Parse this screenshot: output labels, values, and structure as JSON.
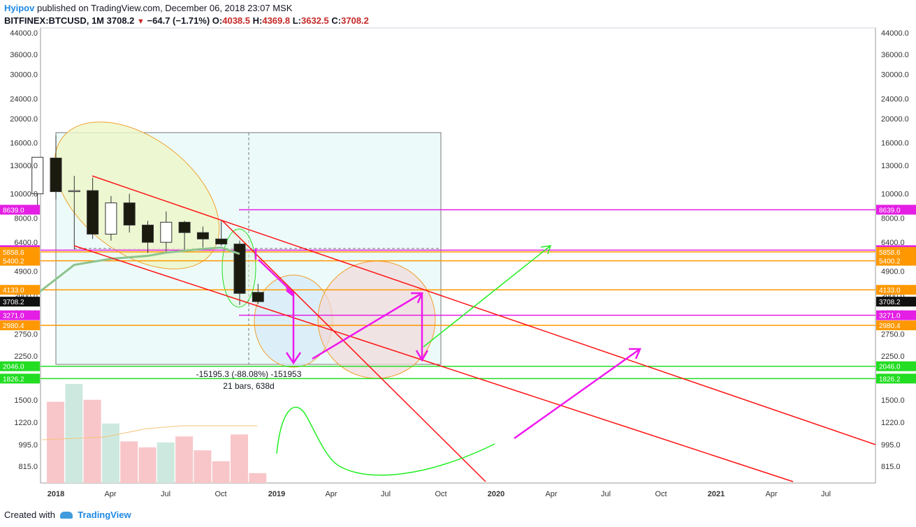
{
  "header": {
    "author": "Hyipov",
    "published_text": "published on TradingView.com, December 06, 2018 23:07 MSK",
    "symbol_line": "BITFINEX:BTCUSD, 1M",
    "last_price": "3708.2",
    "change": "−64.7 (−1.71%)",
    "o_label": "O:",
    "o_value": "4038.5",
    "h_label": "H:",
    "h_value": "4369.8",
    "l_label": "L:",
    "l_value": "3632.5",
    "c_label": "C:",
    "c_value": "3708.2"
  },
  "footer": {
    "created_with": "Created with",
    "brand": "TradingView"
  },
  "chart_data": {
    "type": "candlestick",
    "price_scale": "log",
    "price_ticks": [
      "44000.0",
      "36000.0",
      "30000.0",
      "24000.0",
      "20000.0",
      "16000.0",
      "13000.0",
      "10000.0",
      "8000.0",
      "6400.0",
      "4900.0",
      "3900.0",
      "3350.0",
      "2750.0",
      "2250.0",
      "1826.2",
      "1500.0",
      "1220.0",
      "995.0",
      "815.0"
    ],
    "time_ticks": [
      "2018",
      "Apr",
      "Jul",
      "Oct",
      "2019",
      "Apr",
      "Jul",
      "Oct",
      "2020",
      "Apr",
      "Jul",
      "Oct",
      "2021",
      "Apr",
      "Jul"
    ],
    "candles": [
      {
        "t": "2017-12",
        "o": 10000,
        "h": 14000,
        "l": 9000,
        "c": 14000
      },
      {
        "t": "2018-01",
        "o": 13900,
        "h": 17100,
        "l": 9500,
        "c": 10200
      },
      {
        "t": "2018-02",
        "o": 10200,
        "h": 11800,
        "l": 6000,
        "c": 10300
      },
      {
        "t": "2018-03",
        "o": 10300,
        "h": 11600,
        "l": 6600,
        "c": 6900
      },
      {
        "t": "2018-04",
        "o": 6900,
        "h": 9800,
        "l": 6500,
        "c": 9200
      },
      {
        "t": "2018-05",
        "o": 9200,
        "h": 10000,
        "l": 7000,
        "c": 7500
      },
      {
        "t": "2018-06",
        "o": 7500,
        "h": 7800,
        "l": 5800,
        "c": 6400
      },
      {
        "t": "2018-07",
        "o": 6400,
        "h": 8500,
        "l": 5850,
        "c": 7700
      },
      {
        "t": "2018-08",
        "o": 7700,
        "h": 7800,
        "l": 5900,
        "c": 7000
      },
      {
        "t": "2018-09",
        "o": 7000,
        "h": 7400,
        "l": 6100,
        "c": 6600
      },
      {
        "t": "2018-10",
        "o": 6600,
        "h": 7800,
        "l": 6200,
        "c": 6300
      },
      {
        "t": "2018-11",
        "o": 6300,
        "h": 6500,
        "l": 3600,
        "c": 4000
      },
      {
        "t": "2018-12",
        "o": 4038.5,
        "h": 4369.8,
        "l": 3632.5,
        "c": 3708.2
      }
    ],
    "volumes": [
      {
        "t": "2018-01",
        "v": 0.82,
        "up": false
      },
      {
        "t": "2018-02",
        "v": 1.0,
        "up": true
      },
      {
        "t": "2018-03",
        "v": 0.84,
        "up": false
      },
      {
        "t": "2018-04",
        "v": 0.6,
        "up": true
      },
      {
        "t": "2018-05",
        "v": 0.42,
        "up": false
      },
      {
        "t": "2018-06",
        "v": 0.36,
        "up": false
      },
      {
        "t": "2018-07",
        "v": 0.41,
        "up": true
      },
      {
        "t": "2018-08",
        "v": 0.47,
        "up": false
      },
      {
        "t": "2018-09",
        "v": 0.33,
        "up": false
      },
      {
        "t": "2018-10",
        "v": 0.22,
        "up": false
      },
      {
        "t": "2018-11",
        "v": 0.49,
        "up": false
      },
      {
        "t": "2018-12",
        "v": 0.1,
        "up": false
      }
    ],
    "ma": [
      {
        "t": "2017-12",
        "p": 4000
      },
      {
        "t": "2018-02",
        "p": 5200
      },
      {
        "t": "2018-04",
        "p": 5500
      },
      {
        "t": "2018-06",
        "p": 5650
      },
      {
        "t": "2018-07",
        "p": 5820
      },
      {
        "t": "2018-09",
        "p": 6020
      },
      {
        "t": "2018-10",
        "p": 6100
      },
      {
        "t": "2018-11",
        "p": 5750
      }
    ],
    "horizontal_levels": [
      {
        "price": 8639.0,
        "label": "8639.0",
        "color": "#e41ee4"
      },
      {
        "price": 5955.0,
        "label": "5955.0",
        "color": "#e41ee4"
      },
      {
        "price": 5858.6,
        "label": "5858.6",
        "color": "#ff9800"
      },
      {
        "price": 5400.2,
        "label": "5400.2",
        "color": "#ff9800"
      },
      {
        "price": 4133.0,
        "label": "4133.0",
        "color": "#ff9800"
      },
      {
        "price": 3708.2,
        "label": "3708.2",
        "color": "#111111"
      },
      {
        "price": 3271.0,
        "label": "3271.0",
        "color": "#e41ee4"
      },
      {
        "price": 2980.4,
        "label": "2980.4",
        "color": "#ff9800"
      },
      {
        "price": 2046.0,
        "label": "2046.0",
        "color": "#22dd22"
      },
      {
        "price": 1826.2,
        "label": "1826.2",
        "color": "#22dd22"
      }
    ],
    "measure": {
      "line1": "-15195.3 (-88.08%) -151953",
      "line2": "21 bars, 638d"
    },
    "colors": {
      "up": "#ffffff",
      "down": "#1a1a0e",
      "volume_up": "#cde9df",
      "volume_down": "#f8c6c9",
      "ma": "#8ec48e",
      "trend": "#ff1111",
      "arrow_magenta": "#ee18ee",
      "arrow_green": "#22ee22"
    }
  }
}
